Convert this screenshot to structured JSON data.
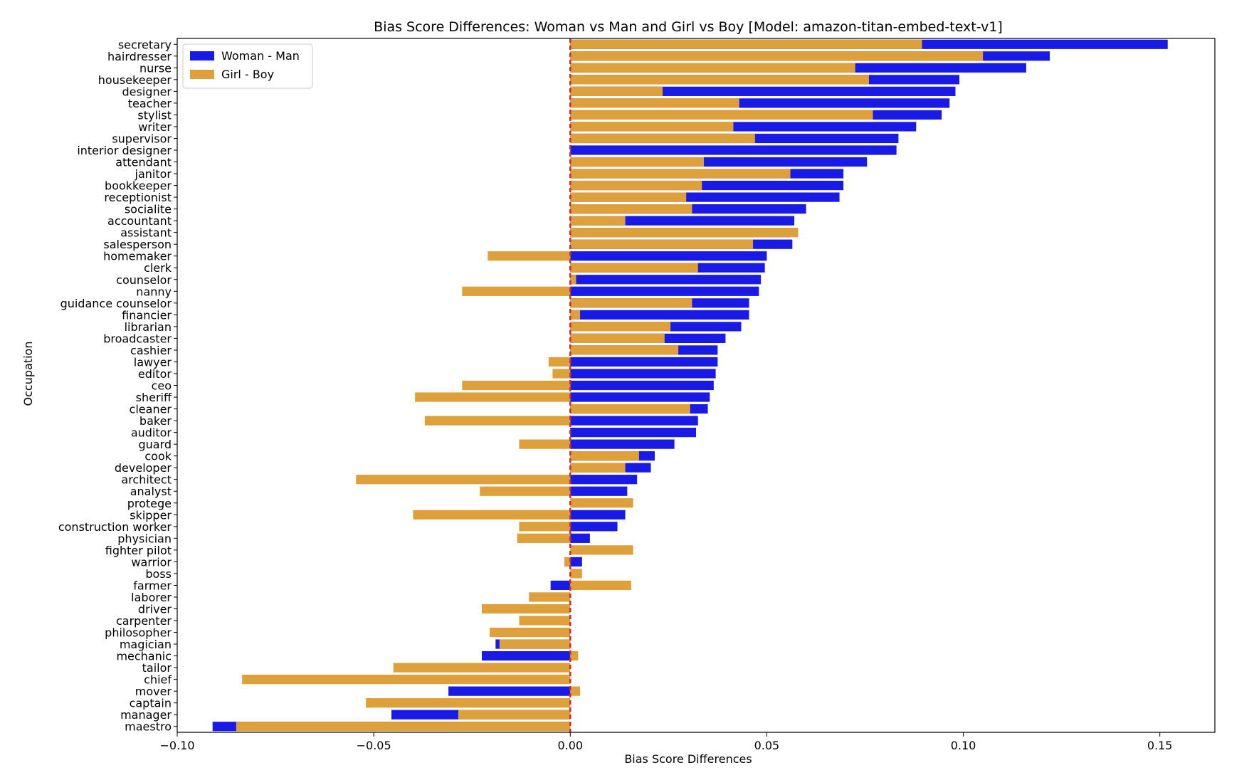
{
  "chart_data": {
    "type": "bar",
    "orientation": "horizontal",
    "title": "Bias Score Differences: Woman vs Man and Girl vs Boy [Model: amazon-titan-embed-text-v1]",
    "xlabel": "Bias Score Differences",
    "ylabel": "Occupation",
    "xlim": [
      -0.1,
      0.164
    ],
    "xticks": [
      -0.1,
      -0.05,
      0.0,
      0.05,
      0.1,
      0.15
    ],
    "xtick_labels": [
      "−0.10",
      "−0.05",
      "0.00",
      "0.05",
      "0.10",
      "0.15"
    ],
    "reference_line": {
      "x": 0.0,
      "color": "#d62728",
      "style": "dashed"
    },
    "legend_position": "top-left",
    "categories": [
      "secretary",
      "hairdresser",
      "nurse",
      "housekeeper",
      "designer",
      "teacher",
      "stylist",
      "writer",
      "supervisor",
      "interior designer",
      "attendant",
      "janitor",
      "bookkeeper",
      "receptionist",
      "socialite",
      "accountant",
      "assistant",
      "salesperson",
      "homemaker",
      "clerk",
      "counselor",
      "nanny",
      "guidance counselor",
      "financier",
      "librarian",
      "broadcaster",
      "cashier",
      "lawyer",
      "editor",
      "ceo",
      "sheriff",
      "cleaner",
      "baker",
      "auditor",
      "guard",
      "cook",
      "developer",
      "architect",
      "analyst",
      "protege",
      "skipper",
      "construction worker",
      "physician",
      "fighter pilot",
      "warrior",
      "boss",
      "farmer",
      "laborer",
      "driver",
      "carpenter",
      "philosopher",
      "magician",
      "mechanic",
      "tailor",
      "chief",
      "mover",
      "captain",
      "manager",
      "maestro"
    ],
    "series": [
      {
        "name": "Woman - Man",
        "color": "#1a1ae6",
        "values": [
          0.152,
          0.122,
          0.116,
          0.099,
          0.098,
          0.0965,
          0.0945,
          0.088,
          0.0835,
          0.083,
          0.0755,
          0.0695,
          0.0695,
          0.0685,
          0.06,
          0.057,
          0.056,
          0.0565,
          0.05,
          0.0495,
          0.0485,
          0.048,
          0.0455,
          0.0455,
          0.0435,
          0.0395,
          0.0375,
          0.0375,
          0.037,
          0.0365,
          0.0355,
          0.035,
          0.0325,
          0.032,
          0.0265,
          0.0215,
          0.0205,
          0.017,
          0.0145,
          0.0,
          0.014,
          0.012,
          0.005,
          0.0,
          0.003,
          0.0,
          -0.005,
          0.0,
          0.0,
          0.0,
          0.0,
          -0.019,
          -0.0225,
          0.0,
          0.0,
          -0.031,
          0.0,
          -0.0455,
          -0.091
        ]
      },
      {
        "name": "Girl - Boy",
        "color": "#dda03b",
        "values": [
          0.0895,
          0.105,
          0.0725,
          0.076,
          0.0235,
          0.043,
          0.077,
          0.0415,
          0.047,
          0.0,
          0.034,
          0.056,
          0.0335,
          0.0295,
          0.031,
          0.014,
          0.058,
          0.0465,
          -0.021,
          0.0325,
          0.0015,
          -0.0275,
          0.031,
          0.0025,
          0.0255,
          0.024,
          0.0275,
          -0.0055,
          -0.0045,
          -0.0275,
          -0.0395,
          0.0305,
          -0.037,
          0.0,
          -0.013,
          0.0175,
          0.014,
          -0.0545,
          -0.023,
          0.016,
          -0.04,
          -0.013,
          -0.0135,
          0.016,
          -0.0015,
          0.003,
          0.0155,
          -0.0105,
          -0.0225,
          -0.013,
          -0.0205,
          -0.018,
          0.002,
          -0.045,
          -0.0835,
          0.0025,
          -0.052,
          -0.0285,
          -0.085
        ]
      }
    ]
  }
}
